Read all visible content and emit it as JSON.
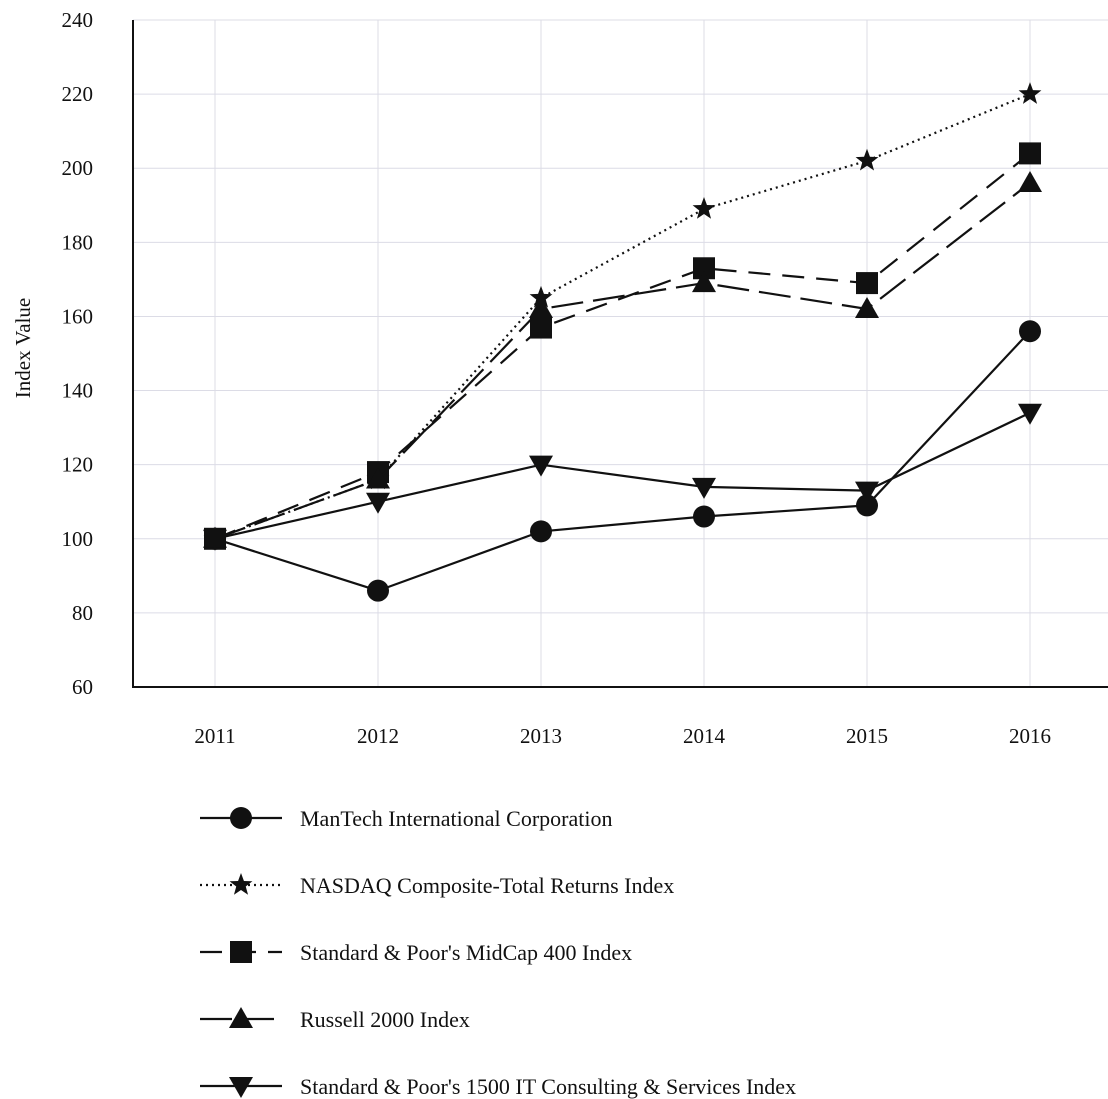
{
  "chart_data": {
    "type": "line",
    "title": "",
    "xlabel": "",
    "ylabel": "Index Value",
    "x": [
      "2011",
      "2012",
      "2013",
      "2014",
      "2015",
      "2016"
    ],
    "y_ticks": [
      "60",
      "80",
      "100",
      "120",
      "140",
      "160",
      "180",
      "200",
      "220",
      "240"
    ],
    "ylim": [
      60,
      240
    ],
    "grid": true,
    "legend_position": "bottom",
    "series": [
      {
        "name": "ManTech International Corporation",
        "marker": "circle",
        "line_style": "solid",
        "values": [
          100,
          86,
          102,
          106,
          109,
          156
        ]
      },
      {
        "name": "NASDAQ Composite-Total Returns Index",
        "marker": "star",
        "line_style": "dotted",
        "values": [
          100,
          116,
          165,
          189,
          202,
          220
        ]
      },
      {
        "name": "Standard & Poor's MidCap 400 Index",
        "marker": "square",
        "line_style": "dashed",
        "values": [
          100,
          118,
          157,
          173,
          169,
          204
        ]
      },
      {
        "name": "Russell 2000 Index",
        "marker": "triangle-up",
        "line_style": "long-dash",
        "values": [
          100,
          116,
          162,
          169,
          162,
          196
        ]
      },
      {
        "name": "Standard & Poor's 1500 IT Consulting & Services Index",
        "marker": "triangle-down",
        "line_style": "solid",
        "values": [
          100,
          110,
          120,
          114,
          113,
          134
        ]
      }
    ]
  }
}
